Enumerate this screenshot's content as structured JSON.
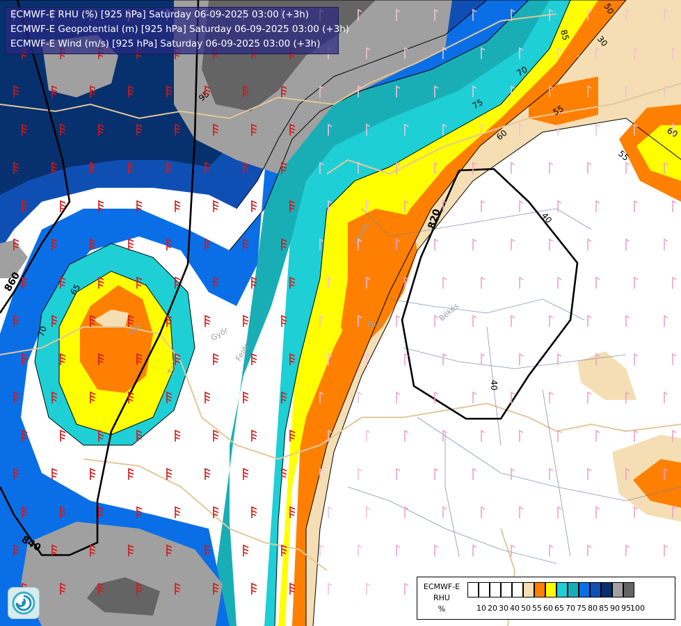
{
  "header": {
    "line1": "ECMWF-E RHU (%) [925 hPa] Saturday 06-09-2025 03:00 (+3h)",
    "line2": "ECMWF-E Geopotential (m) [925 hPa] Saturday 06-09-2025 03:00 (+3h)",
    "line3": "ECMWF-E Wind (m/s) [925 hPa] Saturday 06-09-2025 03:00 (+3h)"
  },
  "legend": {
    "title_lines": [
      "ECMWF-E",
      "RHU",
      "%"
    ],
    "classes": [
      {
        "label": "10",
        "color": "#ffffff"
      },
      {
        "label": "20",
        "color": "#ffffff"
      },
      {
        "label": "30",
        "color": "#ffffff"
      },
      {
        "label": "40",
        "color": "#ffffff"
      },
      {
        "label": "50",
        "color": "#ffffff"
      },
      {
        "label": "55",
        "color": "#f5deb3"
      },
      {
        "label": "60",
        "color": "#ff8000"
      },
      {
        "label": "65",
        "color": "#ffff00"
      },
      {
        "label": "70",
        "color": "#1ecfd6"
      },
      {
        "label": "75",
        "color": "#19aeb6"
      },
      {
        "label": "80",
        "color": "#0a6fe6"
      },
      {
        "label": "85",
        "color": "#0f4fb4"
      },
      {
        "label": "90",
        "color": "#06306e"
      },
      {
        "label": "95",
        "color": "#a0a0a0"
      },
      {
        "label": "100",
        "color": "#646464"
      }
    ]
  },
  "contour_labels": [
    {
      "text": "95",
      "color": "#000"
    },
    {
      "text": "85",
      "color": "#000"
    },
    {
      "text": "75",
      "color": "#000"
    },
    {
      "text": "70",
      "color": "#000"
    },
    {
      "text": "65",
      "color": "#000"
    },
    {
      "text": "60",
      "color": "#000"
    },
    {
      "text": "55",
      "color": "#000"
    },
    {
      "text": "40",
      "color": "#000"
    },
    {
      "text": "50",
      "color": "#000"
    },
    {
      "text": "30",
      "color": "#000"
    }
  ],
  "geopotential_labels": [
    "820",
    "840",
    "860"
  ],
  "place_labels": [
    "Pest",
    "Békés",
    "Heves",
    "Vas",
    "Zala",
    "Győr",
    "Fejér"
  ]
}
